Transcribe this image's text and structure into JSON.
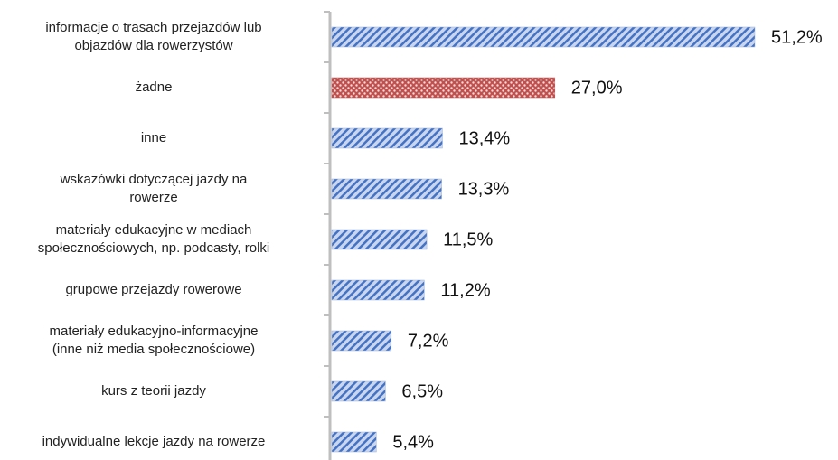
{
  "chart_data": {
    "type": "bar",
    "orientation": "horizontal",
    "categories": [
      "informacje o trasach przejazdów lub\nobjazdów dla rowerzystów",
      "żadne",
      "inne",
      "wskazówki dotyczącej jazdy na\nrowerze",
      "materiały edukacyjne w mediach\nspołecznościowych, np. podcasty, rolki",
      "grupowe przejazdy rowerowe",
      "materiały edukacyjno-informacyjne\n(inne niż media społecznościowe)",
      "kurs z teorii jazdy",
      "indywidualne lekcje jazdy na rowerze"
    ],
    "values": [
      51.2,
      27.0,
      13.4,
      13.3,
      11.5,
      11.2,
      7.2,
      6.5,
      5.4
    ],
    "value_labels": [
      "51,2%",
      "27,0%",
      "13,4%",
      "13,3%",
      "11,5%",
      "11,2%",
      "7,2%",
      "6,5%",
      "5,4%"
    ],
    "colors": [
      "#4472c4",
      "#c0504d",
      "#4472c4",
      "#4472c4",
      "#4472c4",
      "#4472c4",
      "#4472c4",
      "#4472c4",
      "#4472c4"
    ]
  }
}
